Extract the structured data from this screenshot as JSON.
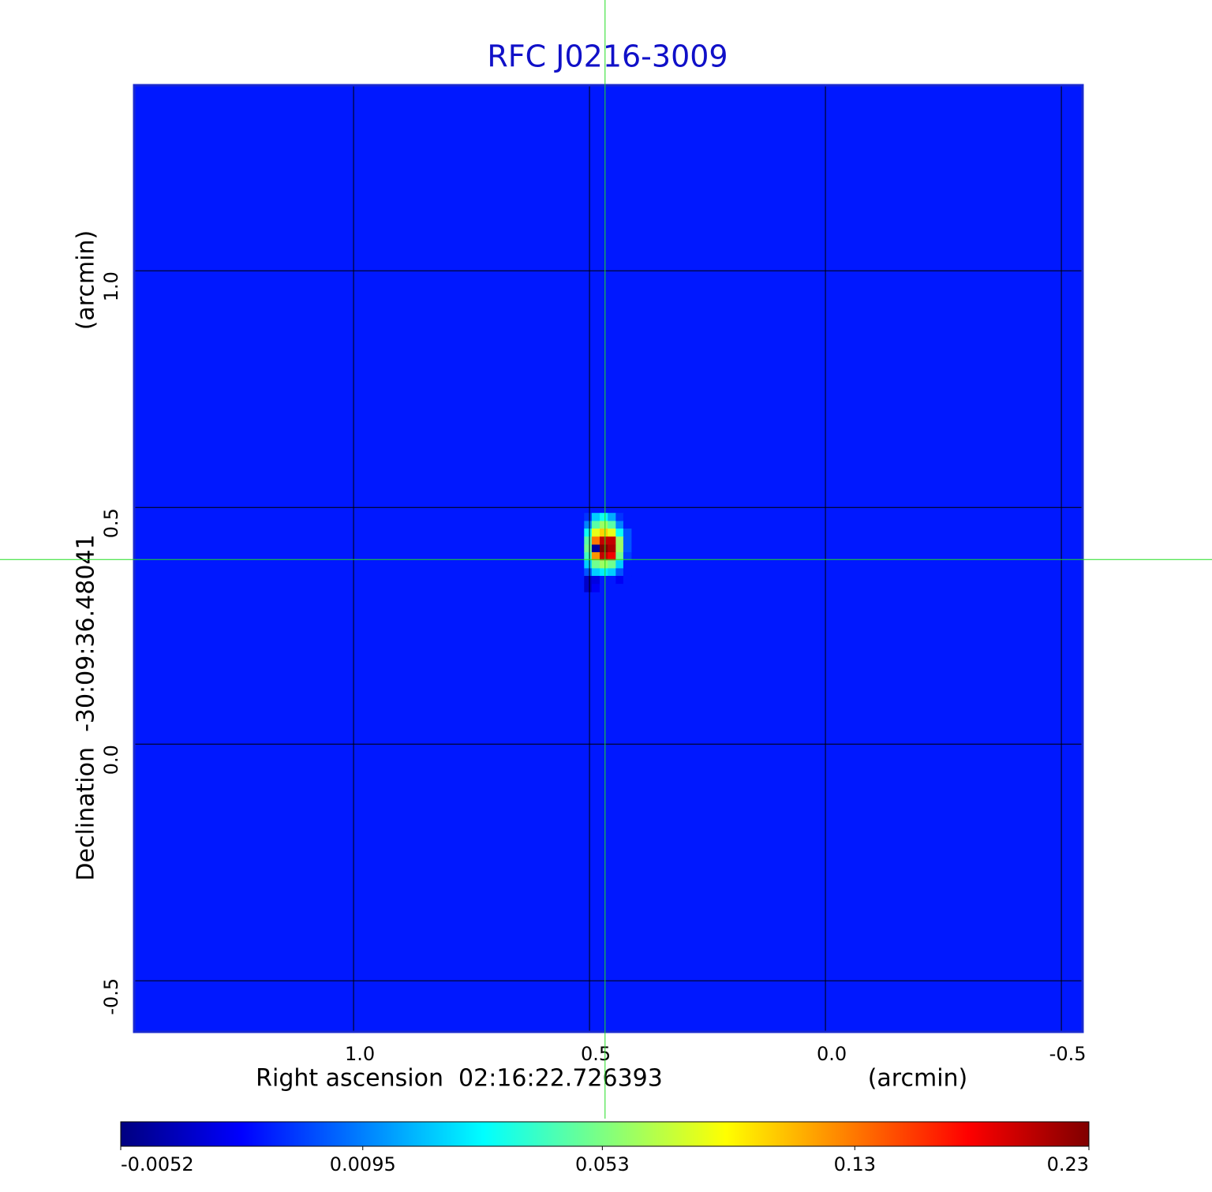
{
  "chart_data": {
    "type": "heatmap",
    "title": "RFC J0216-3009",
    "x_label": "Right ascension  02:16:22.726393",
    "x_unit": "(arcmin)",
    "y_label": "Declination  -30:09:36.48041",
    "y_unit": "(arcmin)",
    "xlim": [
      1.465,
      -0.545
    ],
    "ylim": [
      -0.608,
      1.392
    ],
    "xticks": [
      {
        "value": 1,
        "label": "1.0"
      },
      0.5,
      {
        "value": 0,
        "label": "0.0"
      },
      -0.5
    ],
    "yticks": [
      -0.5,
      {
        "value": 0,
        "label": "0.0"
      },
      0.5,
      {
        "value": 1,
        "label": "1.0"
      }
    ],
    "grid": true,
    "grid_color": "#000000",
    "crosshair": {
      "x": 0.467,
      "y": 0.39,
      "color": "#22dd22"
    },
    "colormap": "jet",
    "colorbar": {
      "clim": [
        -0.0052,
        0.23
      ],
      "scale": "sqrt",
      "ticks": [
        -0.0052,
        0.0095,
        0.053,
        0.13,
        0.23
      ]
    },
    "image": {
      "background": 0.0,
      "pixel_size": 0.0167,
      "x": [
        0.503,
        0.487,
        0.47,
        0.453,
        0.436,
        0.42
      ],
      "y": [
        0.48,
        0.463,
        0.447,
        0.43,
        0.413,
        0.397,
        0.38,
        0.363,
        0.347,
        0.33
      ],
      "z": [
        [
          0.002,
          0.02,
          0.03,
          0.015,
          0.002,
          0
        ],
        [
          0.01,
          0.045,
          0.06,
          0.045,
          0.01,
          0
        ],
        [
          0.03,
          0.08,
          0.1,
          0.08,
          0.03,
          0.005
        ],
        [
          0.045,
          0.13,
          0.2,
          0.2,
          0.06,
          0.005
        ],
        [
          0.05,
          -0.005,
          0.23,
          0.21,
          0.06,
          0.005
        ],
        [
          0.04,
          0.12,
          0.2,
          0.18,
          0.05,
          0.003
        ],
        [
          0.02,
          0.05,
          0.06,
          0.05,
          0.02,
          0
        ],
        [
          0.005,
          0.02,
          0.025,
          0.02,
          0.005,
          0
        ],
        [
          -0.004,
          -0.003,
          0,
          0,
          -0.002,
          0
        ],
        [
          -0.004,
          -0.002,
          0,
          0,
          0,
          0
        ]
      ]
    }
  }
}
